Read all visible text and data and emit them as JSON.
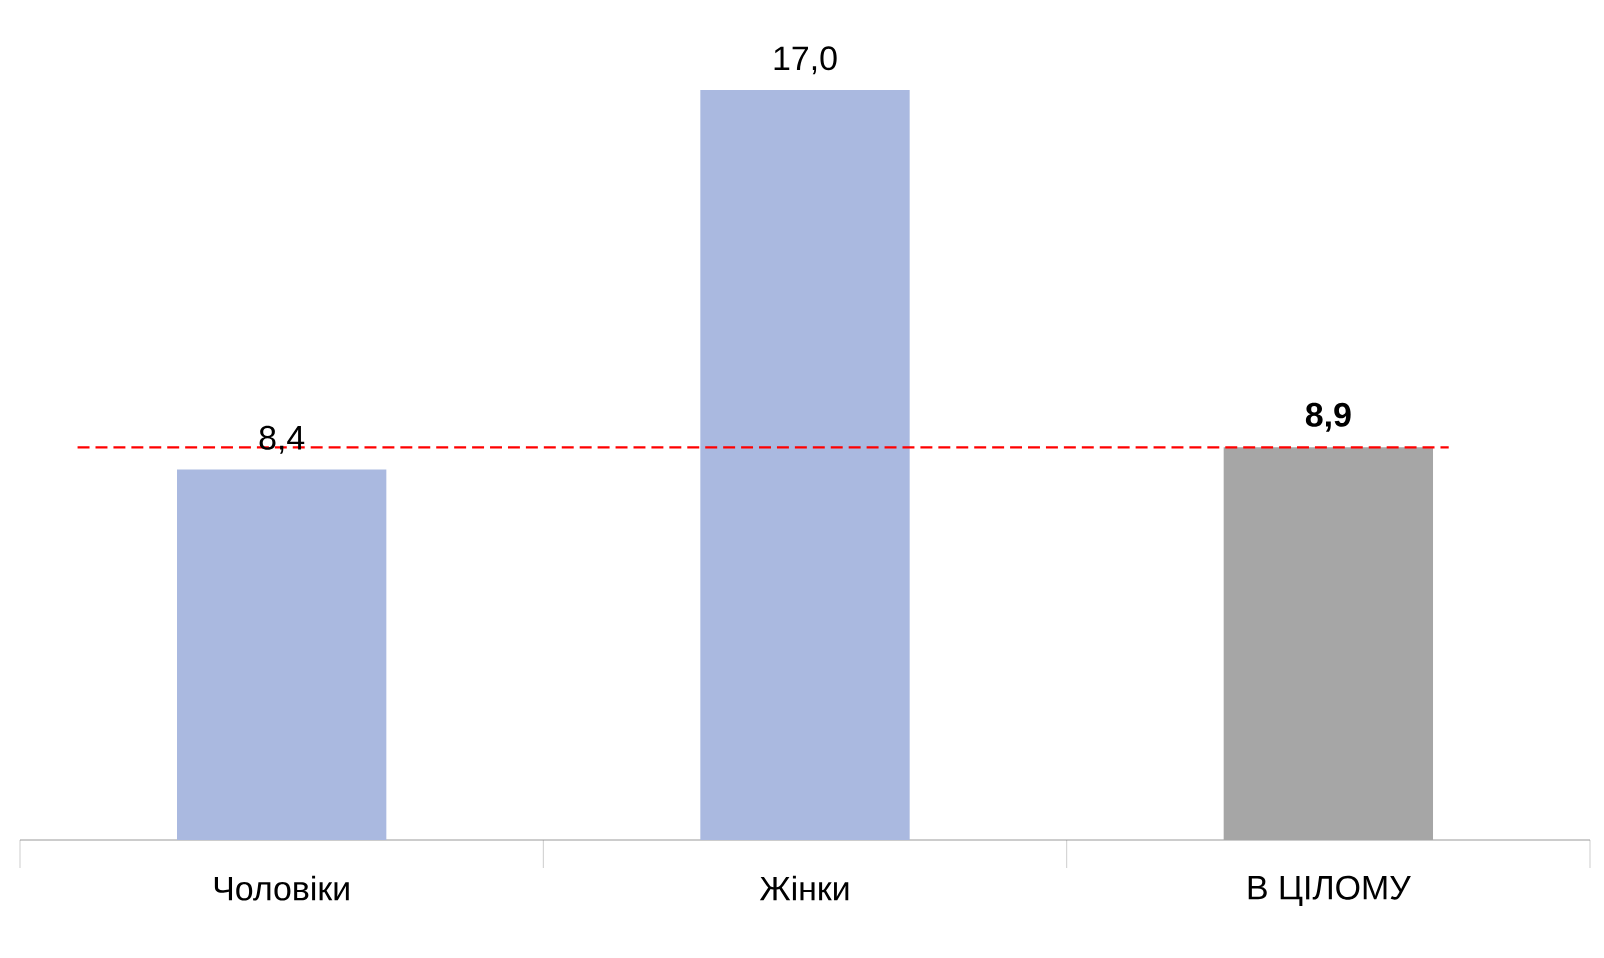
{
  "chart_data": {
    "type": "bar",
    "categories": [
      "Чоловіки",
      "Жінки",
      "В ЦІЛОМУ"
    ],
    "values": [
      8.4,
      17.0,
      8.9
    ],
    "colors": [
      "#aab9e0",
      "#aab9e0",
      "#a6a6a6"
    ],
    "data_labels": true,
    "value_labels": [
      "8,4",
      "17,0",
      "**8,9**"
    ],
    "ref_lines": [
      {
        "axis": "y",
        "value": 8.9,
        "color": "#ff0000",
        "line_style": "dashed"
      }
    ]
  }
}
